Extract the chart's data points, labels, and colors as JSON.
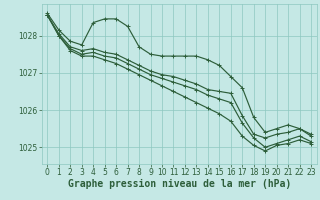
{
  "background_color": "#c5e8e5",
  "grid_color": "#8ec8c0",
  "line_color": "#2d5e3a",
  "xlabel": "Graphe pression niveau de la mer (hPa)",
  "xlabel_fontsize": 7.0,
  "tick_fontsize": 5.5,
  "ylim": [
    1024.55,
    1028.85
  ],
  "xlim": [
    -0.5,
    23.5
  ],
  "yticks": [
    1025,
    1026,
    1027,
    1028
  ],
  "xticks": [
    0,
    1,
    2,
    3,
    4,
    5,
    6,
    7,
    8,
    9,
    10,
    11,
    12,
    13,
    14,
    15,
    16,
    17,
    18,
    19,
    20,
    21,
    22,
    23
  ],
  "line1": [
    1028.6,
    1028.15,
    1027.85,
    1027.75,
    1028.35,
    1028.45,
    1028.45,
    1028.25,
    1027.7,
    1027.5,
    1027.45,
    1027.45,
    1027.45,
    1027.45,
    1027.35,
    1027.2,
    1026.9,
    1026.6,
    1025.8,
    1025.4,
    1025.5,
    1025.6,
    1025.5,
    1025.35
  ],
  "line2": [
    1028.55,
    1028.05,
    1027.7,
    1027.6,
    1027.65,
    1027.55,
    1027.5,
    1027.35,
    1027.2,
    1027.05,
    1026.95,
    1026.9,
    1026.8,
    1026.7,
    1026.55,
    1026.5,
    1026.45,
    1025.85,
    1025.35,
    1025.25,
    1025.35,
    1025.4,
    1025.5,
    1025.3
  ],
  "line3": [
    1028.55,
    1028.0,
    1027.65,
    1027.5,
    1027.55,
    1027.45,
    1027.4,
    1027.25,
    1027.1,
    1026.95,
    1026.85,
    1026.75,
    1026.65,
    1026.55,
    1026.4,
    1026.3,
    1026.2,
    1025.65,
    1025.25,
    1025.0,
    1025.1,
    1025.2,
    1025.3,
    1025.15
  ],
  "line4": [
    1028.55,
    1028.0,
    1027.6,
    1027.45,
    1027.45,
    1027.35,
    1027.25,
    1027.1,
    1026.95,
    1026.8,
    1026.65,
    1026.5,
    1026.35,
    1026.2,
    1026.05,
    1025.9,
    1025.7,
    1025.3,
    1025.05,
    1024.9,
    1025.05,
    1025.1,
    1025.2,
    1025.1
  ],
  "lw": 0.85,
  "marker_size": 2.2
}
